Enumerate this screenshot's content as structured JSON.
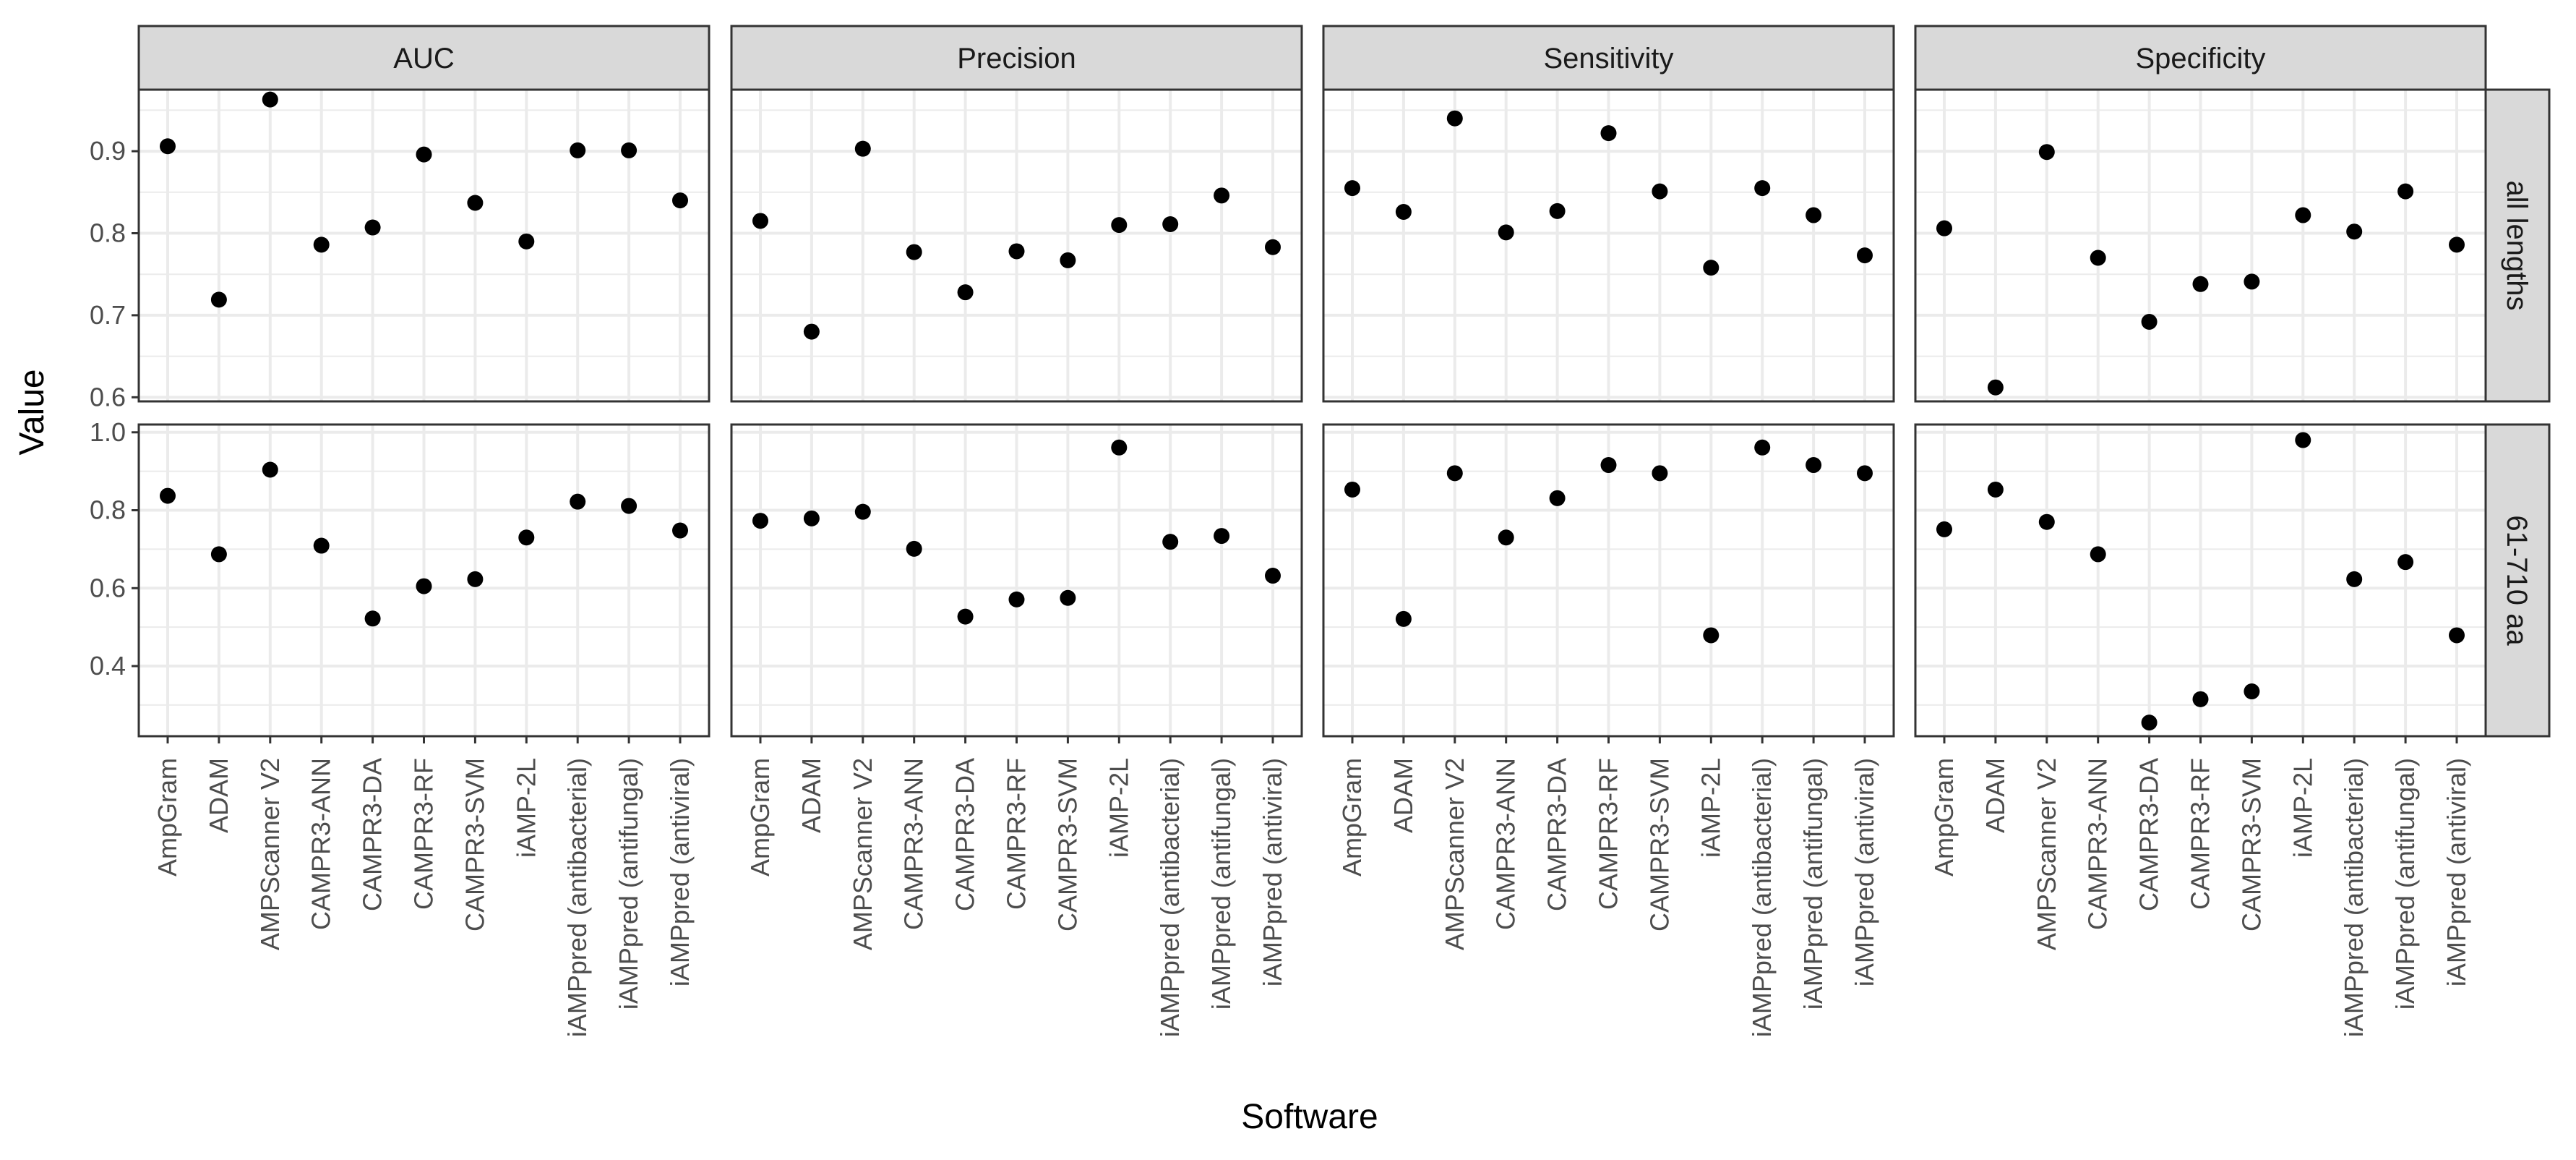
{
  "chart_data": {
    "type": "scatter",
    "facet": "grid",
    "xlabel": "Software",
    "ylabel": "Value",
    "categories": [
      "AmpGram",
      "ADAM",
      "AMPScanner V2",
      "CAMPR3-ANN",
      "CAMPR3-DA",
      "CAMPR3-RF",
      "CAMPR3-SVM",
      "iAMP-2L",
      "iAMPpred (antibacterial)",
      "iAMPpred (antifungal)",
      "iAMPpred (antiviral)"
    ],
    "columns": [
      "AUC",
      "Precision",
      "Sensitivity",
      "Specificity"
    ],
    "rows": [
      {
        "label": "all lengths",
        "ylim": [
          0.595,
          0.975
        ],
        "yticks": [
          0.6,
          0.7,
          0.8,
          0.9
        ],
        "ytick_labels": [
          "0.6",
          "0.7",
          "0.8",
          "0.9"
        ],
        "series": {
          "AUC": [
            0.906,
            0.719,
            0.963,
            0.786,
            0.807,
            0.896,
            0.837,
            0.79,
            0.901,
            0.901,
            0.84
          ],
          "Precision": [
            0.815,
            0.68,
            0.903,
            0.777,
            0.728,
            0.778,
            0.767,
            0.81,
            0.811,
            0.846,
            0.783
          ],
          "Sensitivity": [
            0.855,
            0.826,
            0.94,
            0.801,
            0.827,
            0.922,
            0.851,
            0.758,
            0.855,
            0.822,
            0.773
          ],
          "Specificity": [
            0.806,
            0.612,
            0.899,
            0.77,
            0.692,
            0.738,
            0.741,
            0.822,
            0.802,
            0.851,
            0.786
          ]
        }
      },
      {
        "label": "61-710 aa",
        "ylim": [
          0.22,
          1.02
        ],
        "yticks": [
          0.4,
          0.6,
          0.8,
          1.0
        ],
        "ytick_labels": [
          "0.4",
          "0.6",
          "0.8",
          "1.0"
        ],
        "series": {
          "AUC": [
            0.837,
            0.687,
            0.904,
            0.709,
            0.522,
            0.605,
            0.623,
            0.73,
            0.822,
            0.811,
            0.748
          ],
          "Precision": [
            0.773,
            0.779,
            0.796,
            0.701,
            0.527,
            0.571,
            0.575,
            0.961,
            0.719,
            0.734,
            0.632
          ],
          "Sensitivity": [
            0.853,
            0.521,
            0.895,
            0.73,
            0.831,
            0.916,
            0.895,
            0.479,
            0.961,
            0.916,
            0.895
          ],
          "Specificity": [
            0.751,
            0.853,
            0.77,
            0.687,
            0.255,
            0.315,
            0.335,
            0.98,
            0.623,
            0.667,
            0.479
          ]
        }
      }
    ]
  }
}
